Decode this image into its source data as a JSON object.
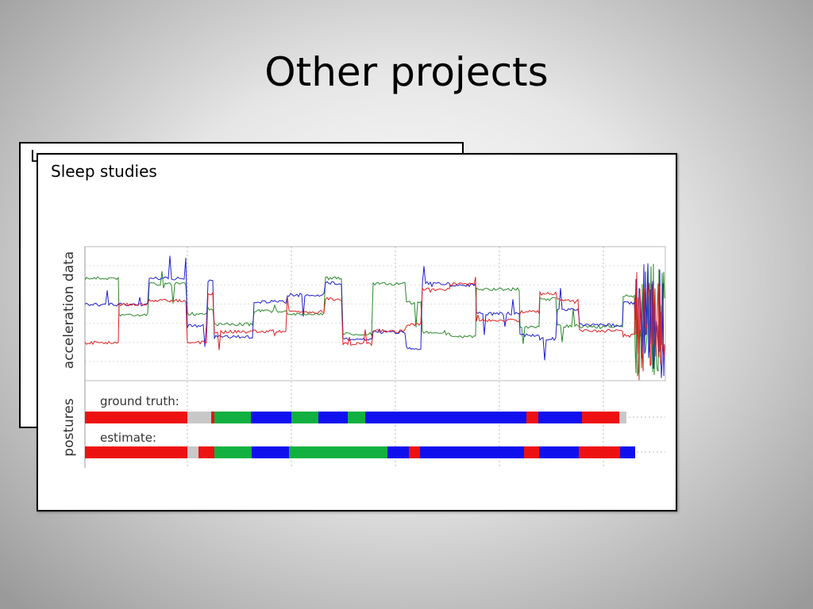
{
  "slide": {
    "title": "Other projects"
  },
  "back_card": {
    "title": "L"
  },
  "front_card": {
    "title": "Sleep studies",
    "figure": {
      "y_label_top": "acceleration data",
      "y_label_bottom": "postures",
      "row_1": "ground truth:",
      "row_2": "estimate:"
    }
  }
}
